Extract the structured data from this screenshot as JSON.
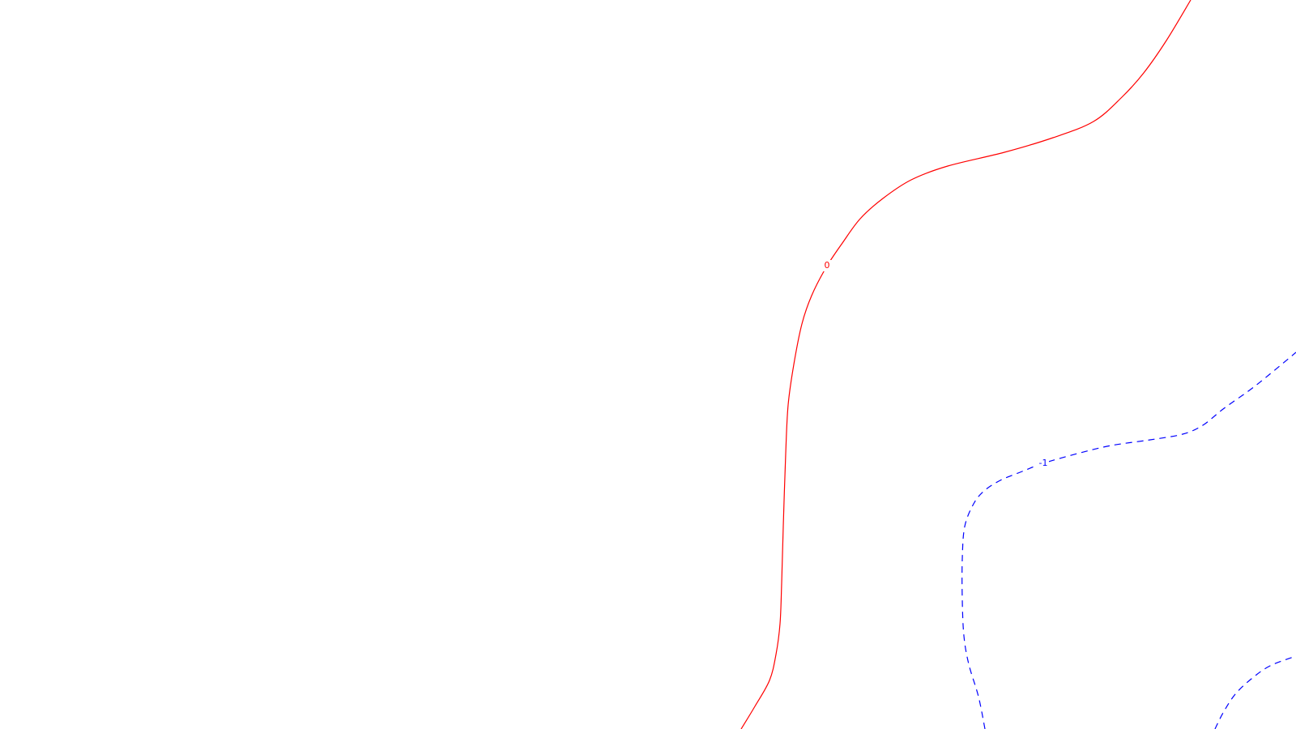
{
  "chart_data": {
    "type": "contour",
    "title": "",
    "xlabel": "",
    "ylabel": "",
    "grid": false,
    "levels": [
      {
        "name": "0",
        "label": "0",
        "color": "#ff0000",
        "line_style": "solid",
        "paths": [
          [
            [
              915,
              900
            ],
            [
              932,
              872
            ],
            [
              950,
              840
            ],
            [
              958,
              808
            ],
            [
              963,
              770
            ],
            [
              965,
              720
            ],
            [
              967,
              650
            ],
            [
              970,
              560
            ],
            [
              973,
              500
            ],
            [
              980,
              450
            ],
            [
              990,
              400
            ],
            [
              1002,
              365
            ],
            [
              1020,
              330
            ],
            [
              1040,
              300
            ],
            [
              1062,
              270
            ],
            [
              1090,
              245
            ],
            [
              1125,
              222
            ],
            [
              1170,
              205
            ],
            [
              1240,
              188
            ],
            [
              1300,
              170
            ],
            [
              1350,
              150
            ],
            [
              1385,
              120
            ],
            [
              1412,
              90
            ],
            [
              1440,
              50
            ],
            [
              1470,
              0
            ]
          ]
        ],
        "label_positions": [
          [
            1021,
            328
          ]
        ]
      },
      {
        "name": "-1",
        "label": "-1",
        "color": "#0000ff",
        "line_style": "dashed",
        "paths": [
          [
            [
              1216,
              900
            ],
            [
              1208,
              860
            ],
            [
              1196,
              820
            ],
            [
              1190,
              785
            ],
            [
              1188,
              740
            ],
            [
              1188,
              690
            ],
            [
              1191,
              650
            ],
            [
              1202,
              622
            ],
            [
              1215,
              606
            ],
            [
              1235,
              593
            ],
            [
              1262,
              582
            ],
            [
              1288,
              572
            ],
            [
              1330,
              560
            ],
            [
              1372,
              550
            ],
            [
              1420,
              543
            ],
            [
              1460,
              536
            ],
            [
              1485,
              525
            ],
            [
              1510,
              505
            ],
            [
              1545,
              480
            ],
            [
              1570,
              460
            ],
            [
              1600,
              435
            ]
          ],
          [
            [
              1500,
              900
            ],
            [
              1510,
              880
            ],
            [
              1525,
              857
            ],
            [
              1545,
              838
            ],
            [
              1568,
              822
            ],
            [
              1600,
              810
            ]
          ]
        ],
        "label_positions": [
          [
            1288,
            572
          ]
        ]
      }
    ]
  }
}
